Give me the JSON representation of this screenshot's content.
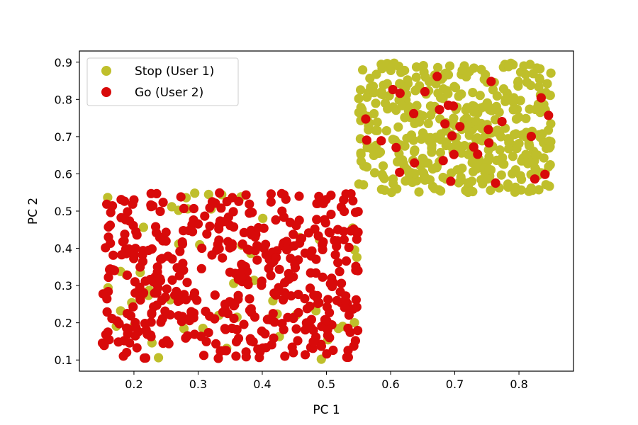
{
  "chart_data": {
    "type": "scatter",
    "xlabel": "PC 1",
    "ylabel": "PC 2",
    "xlim": [
      0.115,
      0.885
    ],
    "ylim": [
      0.07,
      0.93
    ],
    "xticks": [
      0.2,
      0.3,
      0.4,
      0.5,
      0.6,
      0.7,
      0.8
    ],
    "yticks": [
      0.1,
      0.2,
      0.3,
      0.4,
      0.5,
      0.6,
      0.7,
      0.8,
      0.9
    ],
    "grid": false,
    "legend_position": "upper-left",
    "series": [
      {
        "name": "Stop (User 1)",
        "color": "#bfbf2b",
        "clusters": [
          {
            "x_range": [
              0.55,
              0.85
            ],
            "y_range": [
              0.55,
              0.9
            ],
            "count": 430
          },
          {
            "x_range": [
              0.15,
              0.55
            ],
            "y_range": [
              0.1,
              0.55
            ],
            "count": 52
          }
        ]
      },
      {
        "name": "Go (User 2)",
        "color": "#d80a0a",
        "clusters": [
          {
            "x_range": [
              0.15,
              0.55
            ],
            "y_range": [
              0.1,
              0.55
            ],
            "count": 460
          },
          {
            "x_range": [
              0.55,
              0.85
            ],
            "y_range": [
              0.55,
              0.9
            ],
            "count": 32
          }
        ]
      }
    ]
  }
}
